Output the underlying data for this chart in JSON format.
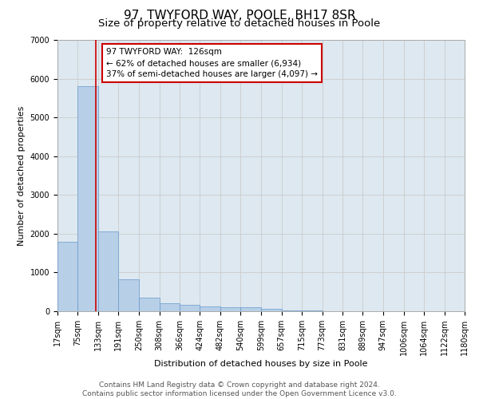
{
  "title": "97, TWYFORD WAY, POOLE, BH17 8SR",
  "subtitle": "Size of property relative to detached houses in Poole",
  "xlabel": "Distribution of detached houses by size in Poole",
  "ylabel": "Number of detached properties",
  "bin_edges": [
    17,
    75,
    133,
    191,
    250,
    308,
    366,
    424,
    482,
    540,
    599,
    657,
    715,
    773,
    831,
    889,
    947,
    1006,
    1064,
    1122,
    1180
  ],
  "bar_heights": [
    1800,
    5800,
    2050,
    820,
    340,
    200,
    160,
    120,
    100,
    100,
    70,
    30,
    20,
    10,
    5,
    5,
    2,
    2,
    1,
    1
  ],
  "bar_color": "#b8cfe8",
  "bar_edge_color": "#6699cc",
  "property_sqm": 126,
  "vline_color": "#cc0000",
  "annotation_text": "97 TWYFORD WAY:  126sqm\n← 62% of detached houses are smaller (6,934)\n37% of semi-detached houses are larger (4,097) →",
  "annotation_box_color": "#ffffff",
  "annotation_border_color": "#cc0000",
  "ylim": [
    0,
    7000
  ],
  "yticks": [
    0,
    1000,
    2000,
    3000,
    4000,
    5000,
    6000,
    7000
  ],
  "grid_color": "#cccccc",
  "bg_color": "#dde8f0",
  "footer_line1": "Contains HM Land Registry data © Crown copyright and database right 2024.",
  "footer_line2": "Contains public sector information licensed under the Open Government Licence v3.0.",
  "title_fontsize": 11,
  "subtitle_fontsize": 9.5,
  "axis_label_fontsize": 8,
  "tick_fontsize": 7,
  "annotation_fontsize": 7.5,
  "footer_fontsize": 6.5
}
